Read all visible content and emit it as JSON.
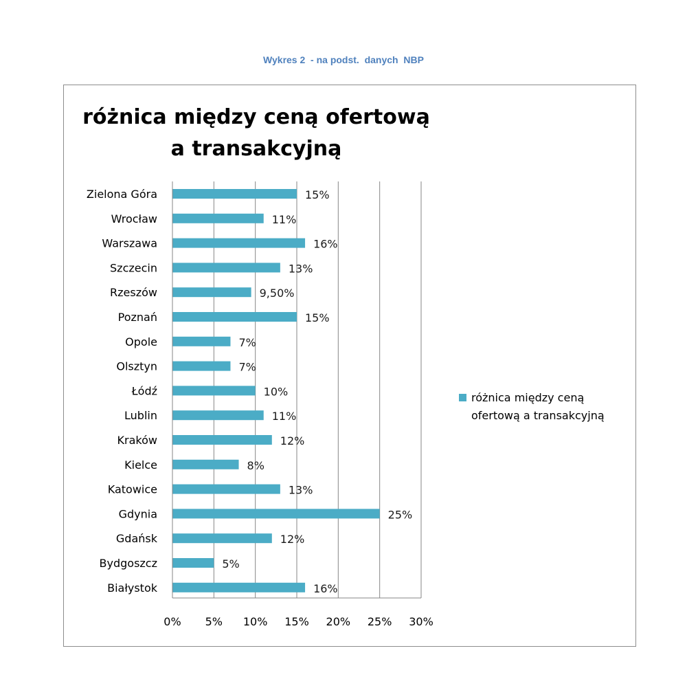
{
  "caption": "Wykres 2  - na podst.  danych  NBP",
  "colors": {
    "bar": "#4bacc6",
    "grid": "#868686",
    "caption": "#4f81bd"
  },
  "chart_data": {
    "type": "bar",
    "orientation": "horizontal",
    "title": "różnica między ceną ofertową a transakcyjną",
    "categories": [
      "Zielona Góra",
      "Wrocław",
      "Warszawa",
      "Szczecin",
      "Rzeszów",
      "Poznań",
      "Opole",
      "Olsztyn",
      "Łódź",
      "Lublin",
      "Kraków",
      "Kielce",
      "Katowice",
      "Gdynia",
      "Gdańsk",
      "Bydgoszcz",
      "Białystok"
    ],
    "series": [
      {
        "name": "różnica między ceną ofertową a transakcyjną",
        "values": [
          15,
          11,
          16,
          13,
          9.5,
          15,
          7,
          7,
          10,
          11,
          12,
          8,
          13,
          25,
          12,
          5,
          16
        ],
        "data_labels": [
          "15%",
          "11%",
          "16%",
          "13%",
          "9,50%",
          "15%",
          "7%",
          "7%",
          "10%",
          "11%",
          "12%",
          "8%",
          "13%",
          "25%",
          "12%",
          "5%",
          "16%"
        ]
      }
    ],
    "xlim": [
      0,
      30
    ],
    "x_ticks": [
      0,
      5,
      10,
      15,
      20,
      25,
      30
    ],
    "x_tick_labels": [
      "0%",
      "5%",
      "10%",
      "15%",
      "20%",
      "25%",
      "30%"
    ],
    "grid": true,
    "legend_position": "right"
  }
}
